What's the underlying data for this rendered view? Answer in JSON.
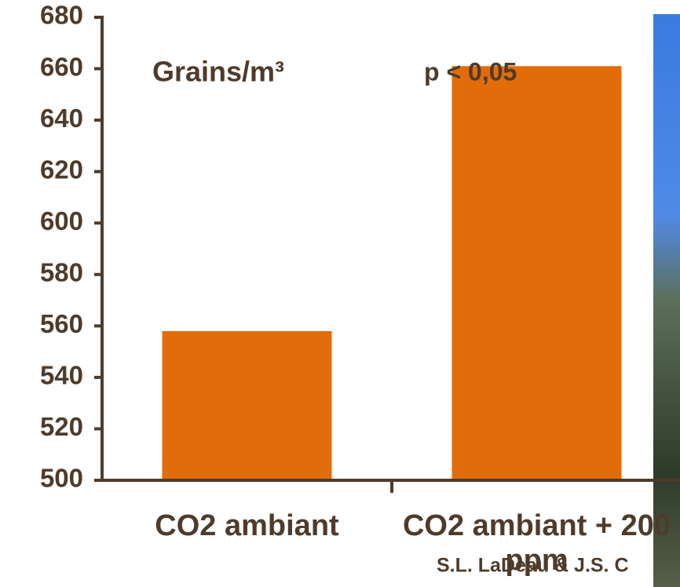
{
  "chart_data": {
    "type": "bar",
    "categories": [
      "CO2 ambiant",
      "CO2 ambiant + 200 ppm"
    ],
    "values": [
      558,
      661
    ],
    "color": "#e36c0a",
    "ylim": [
      500,
      680
    ],
    "yticks": [
      500,
      520,
      540,
      560,
      580,
      600,
      620,
      640,
      660,
      680
    ],
    "annotations": [
      "Grains/m³",
      "p < 0,05",
      "S.L. LaDeau & J.S. C"
    ]
  }
}
